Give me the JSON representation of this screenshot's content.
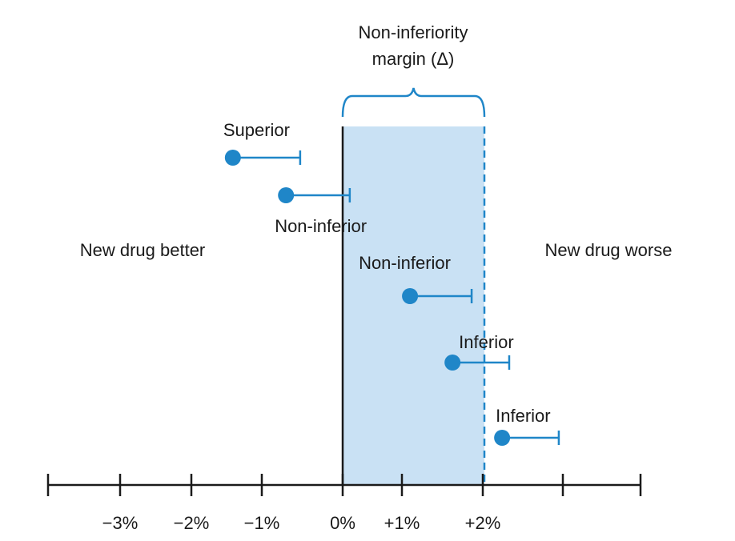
{
  "title_lines": [
    "Non-inferiority",
    "margin (Δ)"
  ],
  "regions": {
    "left": "New drug better",
    "right": "New drug worse"
  },
  "x_axis": {
    "ticks": [
      -4,
      -3,
      -2,
      -1,
      0,
      1,
      2,
      3,
      4
    ],
    "tick_labels": [
      "",
      "−3%",
      "−2%",
      "−1%",
      "0%",
      "+1%",
      "+2%",
      "",
      ""
    ]
  },
  "margin": {
    "from": 0,
    "to": 2
  },
  "trials": [
    {
      "label": "Superior",
      "estimate": -1.55,
      "upper": -0.6
    },
    {
      "label": "Non-inferior",
      "estimate": -0.8,
      "upper": 0.1
    },
    {
      "label": "Non-inferior",
      "estimate": 0.95,
      "upper": 1.82
    },
    {
      "label": "Inferior",
      "estimate": 1.55,
      "upper": 2.35
    },
    {
      "label": "Inferior",
      "estimate": 2.25,
      "upper": 3.05
    }
  ],
  "colors": {
    "accent": "#1f86c8",
    "shade": "#c9e1f4",
    "axis": "#1a1a1a",
    "text": "#1a1a1a"
  }
}
